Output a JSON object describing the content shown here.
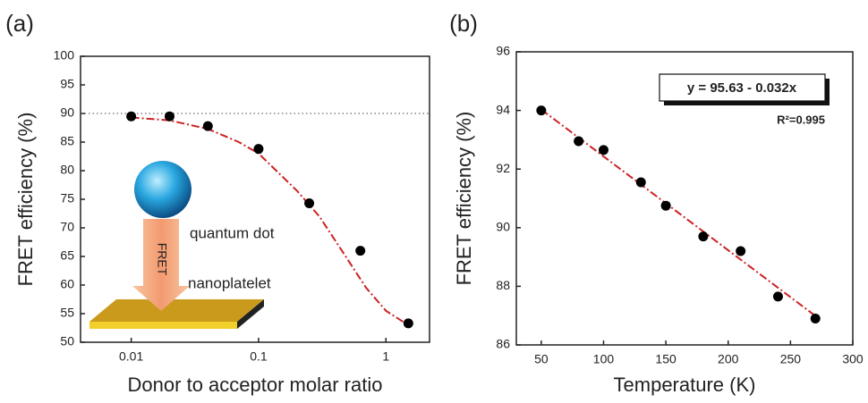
{
  "chart_data": [
    {
      "type": "scatter",
      "panel": "(a)",
      "xlabel": "Donor to acceptor molar ratio",
      "ylabel": "FRET efficiency (%)",
      "xscale": "log",
      "xlim": [
        0.004,
        2.2
      ],
      "xticks": [
        0.01,
        0.1,
        1
      ],
      "ylim": [
        50,
        100
      ],
      "yticks": [
        50,
        55,
        60,
        65,
        70,
        75,
        80,
        85,
        90,
        95,
        100
      ],
      "x": [
        0.01,
        0.02,
        0.04,
        0.1,
        0.25,
        0.63,
        1.5
      ],
      "values": [
        89.5,
        89.5,
        87.8,
        83.8,
        74.3,
        66,
        53.3
      ],
      "color": "#000000",
      "fit": {
        "x": [
          0.01,
          0.02,
          0.04,
          0.07,
          0.1,
          0.2,
          0.3,
          0.5,
          0.7,
          1.0,
          1.5
        ],
        "values": [
          89.3,
          88.8,
          87.3,
          85,
          83,
          76.5,
          72,
          64.5,
          59.5,
          55.5,
          53
        ],
        "color": "#cc2222"
      },
      "hline": 90,
      "annotations": [
        "quantum dot",
        "FRET",
        "nanoplatelet"
      ]
    },
    {
      "type": "scatter",
      "panel": "(b)",
      "xlabel": "Temperature (K)",
      "ylabel": "FRET efficiency (%)",
      "xscale": "linear",
      "xlim": [
        30,
        300
      ],
      "xticks": [
        50,
        100,
        150,
        200,
        250,
        300
      ],
      "ylim": [
        86,
        96
      ],
      "yticks": [
        86,
        88,
        90,
        92,
        94,
        96
      ],
      "x": [
        50,
        80,
        100,
        130,
        150,
        180,
        210,
        240,
        270
      ],
      "values": [
        94,
        92.95,
        92.65,
        91.55,
        90.75,
        89.7,
        89.2,
        87.65,
        86.9
      ],
      "color": "#000000",
      "fit": {
        "x": [
          50,
          270
        ],
        "values": [
          94.03,
          86.99
        ],
        "color": "#cc2222"
      },
      "equation": "y = 95.63 - 0.032x",
      "r2": "R²=0.995"
    }
  ]
}
